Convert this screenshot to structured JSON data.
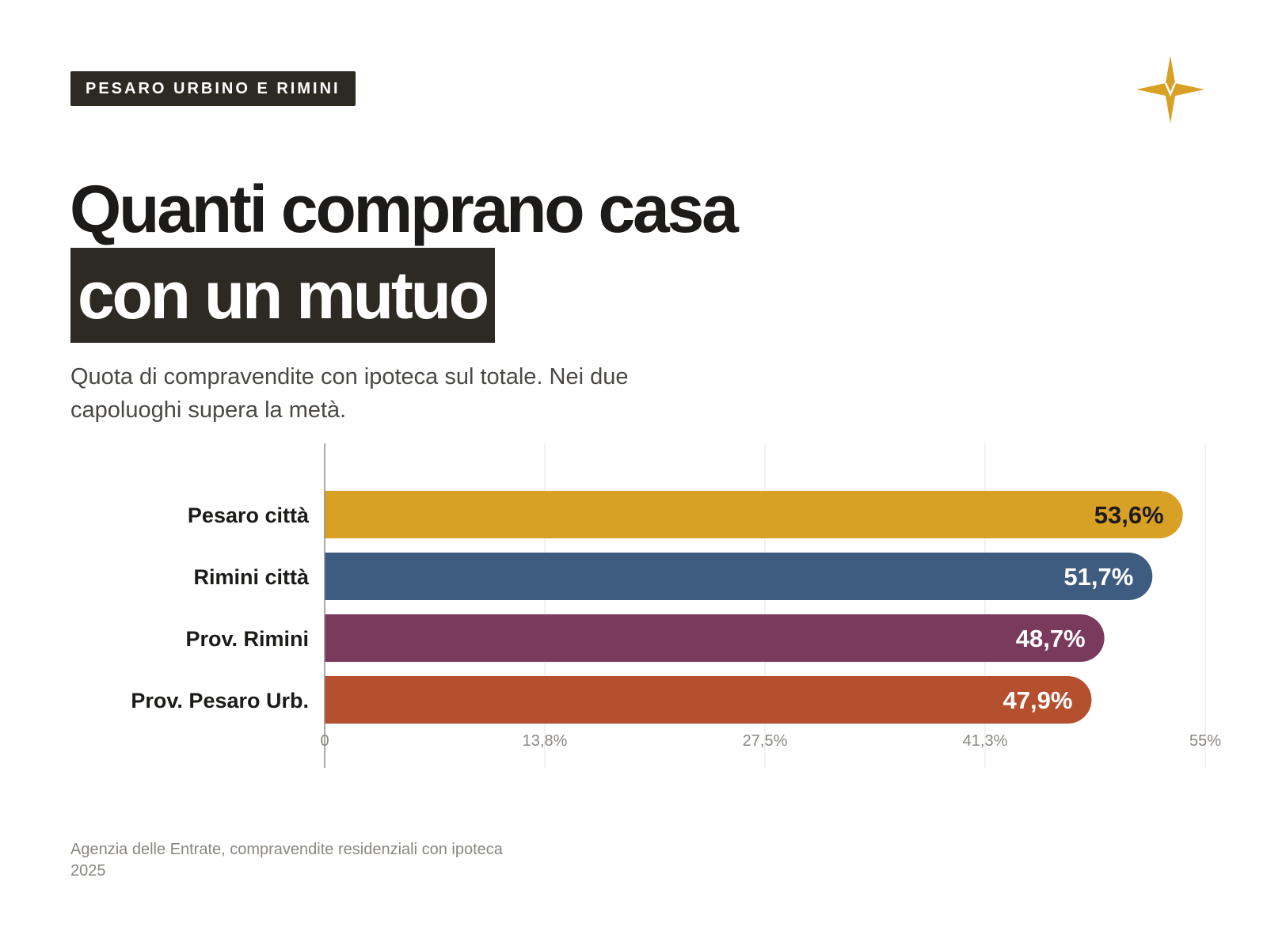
{
  "header": {
    "tag": "PESARO URBINO E RIMINI",
    "title_line1": "Quanti comprano casa",
    "title_line2": "con un mutuo",
    "subtitle": "Quota di compravendite con ipoteca sul totale. Nei due capoluoghi supera la metà."
  },
  "logo": {
    "icon": "four-point-star-icon",
    "color": "#d8a024"
  },
  "chart_data": {
    "type": "bar",
    "orientation": "horizontal",
    "categories": [
      "Pesaro città",
      "Rimini città",
      "Prov. Rimini",
      "Prov. Pesaro Urb."
    ],
    "values": [
      53.6,
      51.7,
      48.7,
      47.9
    ],
    "value_labels": [
      "53,6%",
      "51,7%",
      "48,7%",
      "47,9%"
    ],
    "colors": [
      "#d8a024",
      "#3e5c80",
      "#7a3a5c",
      "#b5502f"
    ],
    "value_label_colors": [
      "#1c1b19",
      "#ffffff",
      "#ffffff",
      "#ffffff"
    ],
    "xlim": [
      0,
      55
    ],
    "xticks": [
      0,
      13.75,
      27.5,
      41.25,
      55
    ],
    "xtick_labels": [
      "0",
      "13,8%",
      "27,5%",
      "41,3%",
      "55%"
    ],
    "grid": true,
    "legend": "none"
  },
  "footer": {
    "source": "Agenzia delle Entrate, compravendite residenziali con ipoteca",
    "year": "2025"
  }
}
